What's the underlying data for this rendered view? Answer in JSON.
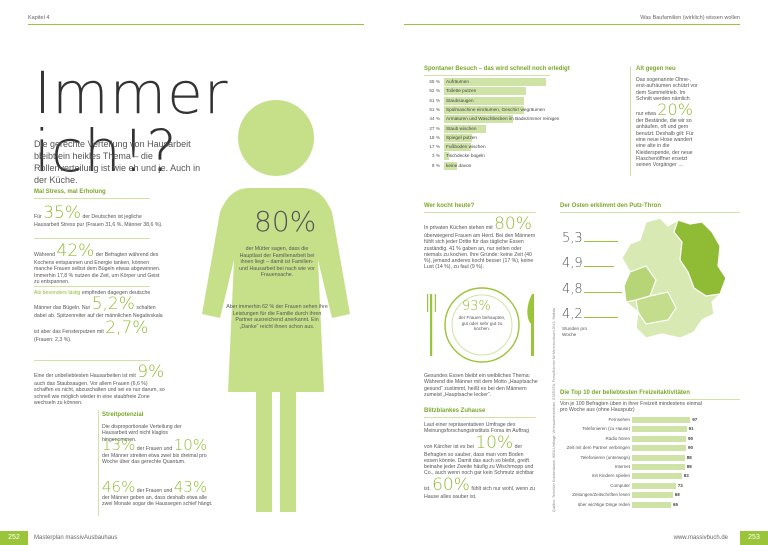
{
  "header": {
    "left_chapter": "Kapitel 4",
    "right_title": "Was Baufamilien (wirklich) wissen wollen"
  },
  "left": {
    "headline": "Immer ich!?",
    "intro": "Die gerechte Verteilung von Hausarbeit bleibt ein heikles Thema – die Rollenverteilung ist wie eh und je. Auch in der Küche.",
    "stress": {
      "title": "Mal Stress, mal Erholung",
      "p1_pre": "Für",
      "p1_num": "35%",
      "p1_text": "der Deutschen ist jegliche Hausarbeit Stress pur (Frauen 31,6 %, Männer 38,6 %).",
      "p2_pre": "Während",
      "p2_num": "42%",
      "p2_text": "der Befragten während des Kochens entspannen und Energie tanken, können manche Frauen selbst dem Bügeln etwas abgewinnen. Immerhin 17,8 % nutzen die Zeit, um Körper und Geist zu entspannen.",
      "p3_title": "Als besonders lästig",
      "p3_text1": "empfinden dagegen deutsche Männer das Bügeln. Nur",
      "p3_num1": "5,2%",
      "p3_text2": "schalten dabei ab. Spitzenreiter auf der männlichen Negativskala ist aber das Fensterputzen mit",
      "p3_num2": "2,7%",
      "p3_text3": "(Frauen: 2,3 %).",
      "p4_text1": "Eine der unbeliebtesten Hausarbeiten ist mit",
      "p4_num": "9%",
      "p4_text2": "auch das Staubsaugen. Vor allem Frauen (6,6 %) schaffen es nicht, abzuschalten und sei es nur darum, so schnell wie möglich wieder in eine staubfreie Zone wechseln zu können."
    },
    "streit": {
      "title": "Streitpotenzial",
      "p1": "Die disproportionale Verteilung der Hausarbeit wird nicht klaglos hingenommen.",
      "num1": "13%",
      "p2": "der Frauen und",
      "num2": "10%",
      "p3": "der Männer streiten etwa zwei bis dreimal pro Woche über das gerechte Quantum.",
      "num3": "46%",
      "p4": "der Frauen und",
      "num4": "43%",
      "p5": "der Männer geben an, dass deshalb etwa alle zwei Monate sogar die Haussegen schief hängt."
    },
    "figure": {
      "big_num": "80%",
      "text1": "der Mütter sagen, dass die Hauptlast der Familienarbeit bei ihnen liegt – damit ist Familien- und Hausarbeit bei nach wie vor Frauensache.",
      "text2": "Aber immerhin 62 % der Frauen sehen ihre Leistungen für die Familie durch ihren Partner ausreichend anerkannt. Ein „Danke“ reicht ihnen schon aus."
    },
    "footer": "Masterplan massivAusbauhaus",
    "page_num": "252"
  },
  "right": {
    "spontan": {
      "title": "Spontaner Besuch – das wird schnell noch erledigt",
      "rows": [
        {
          "pct": "65 %",
          "label": "Aufräumen",
          "value": 65
        },
        {
          "pct": "52 %",
          "label": "Toilette putzen",
          "value": 52
        },
        {
          "pct": "51 %",
          "label": "Staubsaugen",
          "value": 51
        },
        {
          "pct": "51 %",
          "label": "Spülmaschine einräumen, Geschirr wegräumen",
          "value": 51
        },
        {
          "pct": "44 %",
          "label": "Armaturen und Waschbecken im Badezimmer reinigen",
          "value": 44
        },
        {
          "pct": "27 %",
          "label": "Staub wischen",
          "value": 27
        },
        {
          "pct": "18 %",
          "label": "Spiegel putzen",
          "value": 18
        },
        {
          "pct": "17 %",
          "label": "Fußboden wischen",
          "value": 17
        },
        {
          "pct": "3 %",
          "label": "Tischdecke bügeln",
          "value": 3
        },
        {
          "pct": "8 %",
          "label": "keine davon",
          "value": 8
        }
      ]
    },
    "alt": {
      "title": "Alt gegen neu",
      "text1": "Das sogenannte Ohne-, erst-aufräumen schützt vor dem Sammeltrieb. Im Schnitt werden nämlich nur etwa",
      "num": "20%",
      "text2": "der Bestände, die wir so anhäufen, oft und gern benutzt. Deshalb gilt: Für eine neue Hose wandert eine alte in die Kleiderspende, der neue Flaschenöffner ersetzt seinen Vorgänger …"
    },
    "wer": {
      "title": "Wer kocht heute?",
      "text1": "In privaten Küchen stehen mit",
      "num": "80%",
      "text2": "überwiegend Frauen am Herd. Bei den Männern fühlt sich jeder Dritte für das tägliche Essen zuständig. 41 % gaben an, nur selten oder niemals zu kochen. Ihre Gründe: keine Zeit (40 %), jemand anderes kocht besser (17 %), keine Lust (14 %), zu faul (9 %).",
      "plate_num": "93%",
      "plate_text": "der Frauen behaupten, gut oder sehr gut zu kochen.",
      "text3": "Gesundes Essen bleibt ein weibliches Thema: Während die Männer mit dem Motto „Hauptsache gesund“ zustimmt, heißt es bei den Männern zumeist „Hauptsache lecker“."
    },
    "blitz": {
      "title": "Blitzblankes Zuhause",
      "text1": "Laut einer repräsentativen Umfrage des Meinungsforschungsinstituts Forsa im Auftrag von Kärcher ist es bei",
      "num1": "10%",
      "text2": "der Befragten so sauber, dass man vom Boden essen könnte. Damit das auch so bleibt, greift beinahe jeder Zweite häufig zu Wischmopp und Co., auch wenn noch gar kein Schmutz sichtbar ist.",
      "num2": "60%",
      "text3": "fühlt sich nur wohl, wenn zu Hause alles sauber ist."
    },
    "sources": "Quellen: Techniker Krankenkasse, IKEA-Umfrage, Verbraucherzentrale, STATISTA, Forsa/Kärcher für Mein kochbuch 2013, Statista",
    "osten": {
      "title": "Der Osten erklimmt den Putz-Thron",
      "v1": "5,3",
      "v2": "4,9",
      "v3": "4,8",
      "v4": "4,2",
      "unit": "Stunden pro Woche"
    },
    "top10": {
      "title": "Die Top 10 der beliebtesten Freizeitaktivitäten",
      "subtitle": "Von je 100 Befragten üben in ihrer Freizeit mindestens einmal pro Woche aus (ohne Hausputz)",
      "rows": [
        {
          "label": "Fernsehen",
          "value": 97
        },
        {
          "label": "Telefonieren (zu Hause)",
          "value": 91
        },
        {
          "label": "Radio hören",
          "value": 90
        },
        {
          "label": "Zeit mit dem Partner verbringen",
          "value": 90
        },
        {
          "label": "Telefonieren (unterwegs)",
          "value": 88
        },
        {
          "label": "Internet",
          "value": 88
        },
        {
          "label": "mit Kindern spielen",
          "value": 83
        },
        {
          "label": "Computer",
          "value": 73
        },
        {
          "label": "Zeitungen/Zeitschriften lesen",
          "value": 68
        },
        {
          "label": "über wichtige Dinge reden",
          "value": 65
        }
      ]
    },
    "footer": "www.massivbuch.de",
    "page_num": "253"
  },
  "colors": {
    "accent": "#8fbc34",
    "light": "#cfe3a7",
    "map_dark": "#8fbc34",
    "map_light": "#d8e9b4"
  }
}
